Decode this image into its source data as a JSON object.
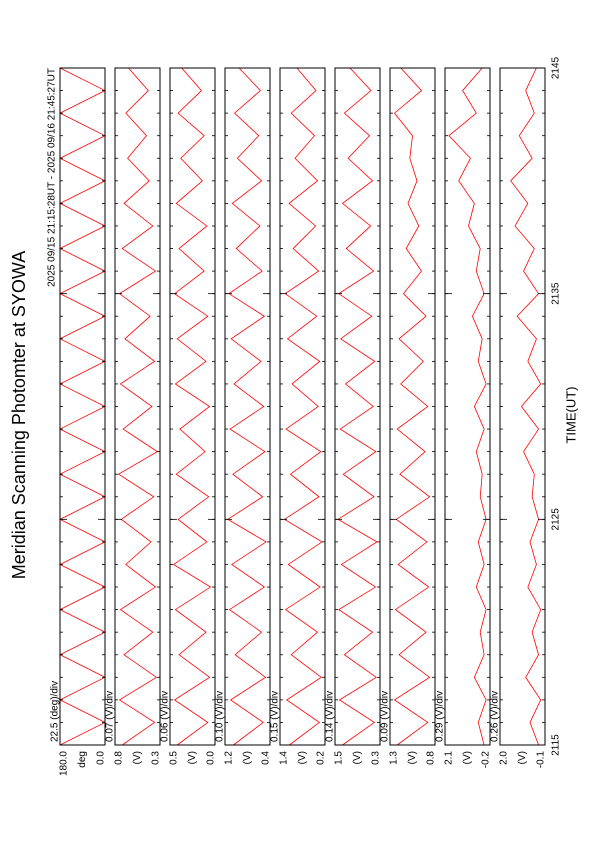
{
  "chart_data": [
    {
      "type": "line",
      "title": "Meridian Scanning Photomter at SYOWA",
      "subtitle": "2025 09/15 21:15:28UT - 2025 09/16 21:45:27UT",
      "scale_label": "22.5 (deg)/div",
      "unit": "deg",
      "x": [
        2115,
        2116,
        2117,
        2118,
        2119,
        2120,
        2121,
        2122,
        2123,
        2124,
        2125,
        2126,
        2127,
        2128,
        2129,
        2130,
        2131,
        2132,
        2133,
        2134,
        2135,
        2136,
        2137,
        2138,
        2139,
        2140,
        2141,
        2142,
        2143,
        2144,
        2145
      ],
      "values": [
        180,
        0,
        180,
        0,
        180,
        0,
        180,
        0,
        180,
        0,
        180,
        0,
        180,
        0,
        180,
        0,
        180,
        0,
        180,
        0,
        180,
        0,
        180,
        0,
        180,
        0,
        180,
        0,
        180,
        0,
        180
      ],
      "color": "#ff0000",
      "xlim": [
        2115,
        2145
      ],
      "xticks": [
        2115,
        2125,
        2135,
        2145
      ],
      "ylim": [
        0,
        180
      ],
      "yticks": [
        {
          "value": 180,
          "label": "180.0"
        },
        {
          "value": 0,
          "label": "0.0"
        }
      ]
    },
    {
      "type": "line",
      "scale_label": "0.07 (V)/div",
      "unit": "(V)",
      "x": [
        2115,
        2116,
        2117,
        2118,
        2119,
        2120,
        2121,
        2122,
        2123,
        2124,
        2125,
        2126,
        2127,
        2128,
        2129,
        2130,
        2131,
        2132,
        2133,
        2134,
        2135,
        2136,
        2137,
        2138,
        2139,
        2140,
        2141,
        2142,
        2143,
        2144,
        2145
      ],
      "values": [
        0.72,
        0.36,
        0.75,
        0.34,
        0.7,
        0.38,
        0.74,
        0.35,
        0.68,
        0.4,
        0.73,
        0.37,
        0.76,
        0.33,
        0.71,
        0.39,
        0.74,
        0.36,
        0.69,
        0.41,
        0.75,
        0.35,
        0.72,
        0.38,
        0.7,
        0.42,
        0.66,
        0.45,
        0.68,
        0.43,
        0.65
      ],
      "color": "#ff0000",
      "xlim": [
        2115,
        2145
      ],
      "xticks": [
        2115,
        2125,
        2135,
        2145
      ],
      "ylim": [
        0.3,
        0.8
      ],
      "yticks": [
        0.8,
        0.3
      ]
    },
    {
      "type": "line",
      "scale_label": "0.06 (V)/div",
      "unit": "(V)",
      "x": [
        2115,
        2116,
        2117,
        2118,
        2119,
        2120,
        2121,
        2122,
        2123,
        2124,
        2125,
        2126,
        2127,
        2128,
        2129,
        2130,
        2131,
        2132,
        2133,
        2134,
        2135,
        2136,
        2137,
        2138,
        2139,
        2140,
        2141,
        2142,
        2143,
        2144,
        2145
      ],
      "values": [
        0.42,
        0.08,
        0.45,
        0.06,
        0.4,
        0.1,
        0.44,
        0.05,
        0.46,
        0.09,
        0.41,
        0.07,
        0.43,
        0.11,
        0.39,
        0.06,
        0.44,
        0.1,
        0.42,
        0.08,
        0.45,
        0.12,
        0.4,
        0.09,
        0.43,
        0.14,
        0.38,
        0.12,
        0.41,
        0.15,
        0.37
      ],
      "color": "#ff0000",
      "xlim": [
        2115,
        2145
      ],
      "xticks": [
        2115,
        2125,
        2135,
        2145
      ],
      "ylim": [
        0,
        0.5
      ],
      "yticks": [
        0.5,
        {
          "value": 0,
          "label": "0.0"
        }
      ]
    },
    {
      "type": "line",
      "scale_label": "0.10 (V)/div",
      "unit": "(V)",
      "x": [
        2115,
        2116,
        2117,
        2118,
        2119,
        2120,
        2121,
        2122,
        2123,
        2124,
        2125,
        2126,
        2127,
        2128,
        2129,
        2130,
        2131,
        2132,
        2133,
        2134,
        2135,
        2136,
        2137,
        2138,
        2139,
        2140,
        2141,
        2142,
        2143,
        2144,
        2145
      ],
      "values": [
        1.05,
        0.52,
        1.1,
        0.48,
        1.02,
        0.55,
        1.12,
        0.5,
        1.08,
        0.47,
        1.15,
        0.53,
        1.06,
        0.49,
        1.11,
        0.51,
        1.04,
        0.56,
        1.09,
        0.5,
        1.13,
        0.54,
        1.0,
        0.58,
        1.07,
        0.55,
        0.98,
        0.6,
        1.03,
        0.57,
        0.95
      ],
      "color": "#ff0000",
      "xlim": [
        2115,
        2145
      ],
      "xticks": [
        2115,
        2125,
        2135,
        2145
      ],
      "ylim": [
        0.4,
        1.2
      ],
      "yticks": [
        1.2,
        0.4
      ]
    },
    {
      "type": "line",
      "scale_label": "0.15 (V)/div",
      "unit": "(V)",
      "x": [
        2115,
        2116,
        2117,
        2118,
        2119,
        2120,
        2121,
        2122,
        2123,
        2124,
        2125,
        2126,
        2127,
        2128,
        2129,
        2130,
        2131,
        2132,
        2133,
        2134,
        2135,
        2136,
        2137,
        2138,
        2139,
        2140,
        2141,
        2142,
        2143,
        2144,
        2145
      ],
      "values": [
        1.15,
        0.35,
        1.22,
        0.3,
        1.1,
        0.4,
        1.25,
        0.33,
        1.18,
        0.28,
        1.28,
        0.36,
        1.12,
        0.31,
        1.24,
        0.38,
        1.08,
        0.34,
        1.2,
        0.42,
        1.26,
        0.37,
        1.05,
        0.45,
        1.16,
        0.4,
        1.0,
        0.48,
        1.1,
        0.44,
        0.95
      ],
      "color": "#ff0000",
      "xlim": [
        2115,
        2145
      ],
      "xticks": [
        2115,
        2125,
        2135,
        2145
      ],
      "ylim": [
        0.2,
        1.4
      ],
      "yticks": [
        1.4,
        0.2
      ]
    },
    {
      "type": "line",
      "scale_label": "0.14 (V)/div",
      "unit": "(V)",
      "x": [
        2115,
        2116,
        2117,
        2118,
        2119,
        2120,
        2121,
        2122,
        2123,
        2124,
        2125,
        2126,
        2127,
        2128,
        2129,
        2130,
        2131,
        2132,
        2133,
        2134,
        2135,
        2136,
        2137,
        2138,
        2139,
        2140,
        2141,
        2142,
        2143,
        2144,
        2145
      ],
      "values": [
        1.3,
        0.45,
        1.38,
        0.4,
        1.25,
        0.5,
        1.4,
        0.42,
        1.33,
        0.38,
        1.42,
        0.46,
        1.28,
        0.41,
        1.36,
        0.48,
        1.22,
        0.44,
        1.35,
        0.52,
        1.4,
        0.47,
        1.2,
        0.55,
        1.3,
        0.5,
        1.15,
        0.58,
        1.25,
        0.54,
        1.1
      ],
      "color": "#ff0000",
      "xlim": [
        2115,
        2145
      ],
      "xticks": [
        2115,
        2125,
        2135,
        2145
      ],
      "ylim": [
        0.3,
        1.5
      ],
      "yticks": [
        1.5,
        0.3
      ]
    },
    {
      "type": "line",
      "scale_label": "0.09 (V)/div",
      "unit": "(V)",
      "x": [
        2115,
        2116,
        2117,
        2118,
        2119,
        2120,
        2121,
        2122,
        2123,
        2124,
        2125,
        2126,
        2127,
        2128,
        2129,
        2130,
        2131,
        2132,
        2133,
        2134,
        2135,
        2136,
        2137,
        2138,
        2139,
        2140,
        2141,
        2142,
        2143,
        2144,
        2145
      ],
      "values": [
        1.22,
        0.88,
        1.25,
        0.86,
        1.2,
        0.9,
        1.24,
        0.87,
        1.21,
        0.89,
        1.23,
        0.86,
        1.19,
        0.91,
        1.22,
        0.88,
        1.18,
        0.93,
        1.2,
        0.9,
        1.15,
        0.95,
        1.12,
        0.98,
        1.1,
        1.0,
        1.08,
        1.05,
        1.25,
        0.95,
        1.18
      ],
      "color": "#ff0000",
      "xlim": [
        2115,
        2145
      ],
      "xticks": [
        2115,
        2125,
        2135,
        2145
      ],
      "ylim": [
        0.8,
        1.3
      ],
      "yticks": [
        1.3,
        0.8
      ]
    },
    {
      "type": "line",
      "scale_label": "0.29 (V)/div",
      "unit": "(V)",
      "x": [
        2115,
        2116,
        2117,
        2118,
        2119,
        2120,
        2121,
        2122,
        2123,
        2124,
        2125,
        2126,
        2127,
        2128,
        2129,
        2130,
        2131,
        2132,
        2133,
        2134,
        2135,
        2136,
        2137,
        2138,
        2139,
        2140,
        2141,
        2142,
        2143,
        2144,
        2145
      ],
      "values": [
        0.1,
        0.4,
        0.0,
        0.6,
        0.1,
        0.3,
        0.0,
        0.5,
        0.1,
        0.4,
        0.0,
        0.3,
        0.2,
        0.5,
        0.1,
        0.6,
        0.0,
        0.4,
        0.2,
        0.7,
        0.1,
        0.5,
        0.3,
        0.9,
        0.6,
        1.4,
        0.8,
        1.9,
        0.5,
        1.2,
        0.2
      ],
      "color": "#ff0000",
      "xlim": [
        2115,
        2145
      ],
      "xticks": [
        2115,
        2125,
        2135,
        2145
      ],
      "ylim": [
        -0.2,
        2.1
      ],
      "yticks": [
        2.1,
        -0.2
      ]
    },
    {
      "type": "line",
      "scale_label": "0.26 (V)/div",
      "unit": "(V)",
      "x_label": "TIME(UT)",
      "x": [
        2115,
        2116,
        2117,
        2118,
        2119,
        2120,
        2121,
        2122,
        2123,
        2124,
        2125,
        2126,
        2127,
        2128,
        2129,
        2130,
        2131,
        2132,
        2133,
        2134,
        2135,
        2136,
        2137,
        2138,
        2139,
        2140,
        2141,
        2142,
        2143,
        2144,
        2145
      ],
      "values": [
        0.2,
        0.6,
        0.1,
        0.8,
        0.2,
        0.5,
        0.1,
        0.7,
        0.3,
        0.6,
        0.2,
        0.5,
        0.4,
        0.9,
        0.2,
        1.0,
        0.1,
        0.7,
        0.3,
        1.2,
        0.2,
        0.9,
        0.4,
        1.3,
        0.7,
        1.5,
        0.5,
        1.1,
        0.4,
        0.8,
        0.3
      ],
      "color": "#ff0000",
      "xlim": [
        2115,
        2145
      ],
      "xticks": [
        2115,
        2125,
        2135,
        2145
      ],
      "ylim": [
        -0.1,
        2.0
      ],
      "yticks": [
        {
          "value": 2.0,
          "label": "2.0"
        },
        -0.1
      ]
    }
  ]
}
